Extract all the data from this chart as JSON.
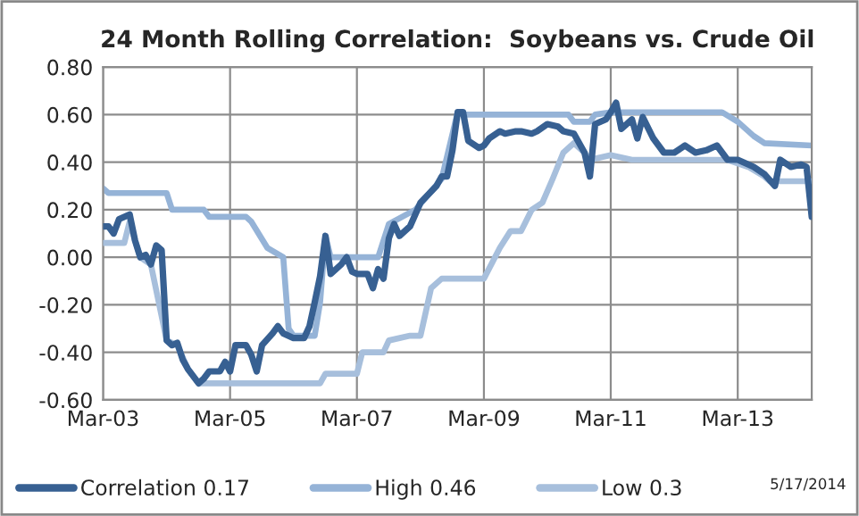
{
  "chart_data": {
    "type": "line",
    "title": "24 Month Rolling Correlation:  Soybeans vs. Crude Oil",
    "xlim": [
      "2003-03",
      "2014-05"
    ],
    "xticks": [
      {
        "value": "2003-03",
        "label": "Mar-03"
      },
      {
        "value": "2005-03",
        "label": "Mar-05"
      },
      {
        "value": "2007-03",
        "label": "Mar-07"
      },
      {
        "value": "2009-03",
        "label": "Mar-09"
      },
      {
        "value": "2011-03",
        "label": "Mar-11"
      },
      {
        "value": "2013-03",
        "label": "Mar-13"
      }
    ],
    "ylim": [
      -0.6,
      0.8
    ],
    "yticks": [
      {
        "value": -0.6,
        "label": "-0.60"
      },
      {
        "value": -0.4,
        "label": "-0.40"
      },
      {
        "value": -0.2,
        "label": "-0.20"
      },
      {
        "value": 0,
        "label": "0.00"
      },
      {
        "value": 0.2,
        "label": "0.20"
      },
      {
        "value": 0.4,
        "label": "0.40"
      },
      {
        "value": 0.6,
        "label": "0.60"
      },
      {
        "value": 0.8,
        "label": "0.80"
      }
    ],
    "grid": true,
    "legend": "bottom",
    "marker": "none",
    "line_style": "solid",
    "annotations": [
      "5/17/2014"
    ],
    "series": [
      {
        "name": "High 0.46",
        "color": "#95b3d7",
        "x": [
          "2003-03",
          "2003-04",
          "2004-03",
          "2004-04",
          "2004-10",
          "2004-11",
          "2005-06",
          "2005-07",
          "2005-10",
          "2006-01",
          "2006-02",
          "2006-03",
          "2006-07",
          "2006-08",
          "2006-09",
          "2006-10",
          "2007-07",
          "2007-09",
          "2008-02",
          "2008-07",
          "2008-10",
          "2008-11",
          "2010-07",
          "2010-08",
          "2010-11",
          "2010-12",
          "2011-03",
          "2012-12",
          "2013-03",
          "2013-06",
          "2013-08",
          "2014-05"
        ],
        "values": [
          0.29,
          0.27,
          0.27,
          0.2,
          0.2,
          0.17,
          0.17,
          0.15,
          0.04,
          0.0,
          -0.3,
          -0.33,
          -0.33,
          -0.19,
          0.09,
          0.0,
          0.0,
          0.14,
          0.2,
          0.33,
          0.61,
          0.6,
          0.6,
          0.57,
          0.57,
          0.6,
          0.61,
          0.61,
          0.57,
          0.51,
          0.48,
          0.47
        ]
      },
      {
        "name": "Low 0.3",
        "color": "#a7bfdc",
        "x": [
          "2003-03",
          "2003-07",
          "2003-08",
          "2003-09",
          "2003-10",
          "2003-12",
          "2004-03",
          "2004-05",
          "2004-07",
          "2004-09",
          "2006-08",
          "2006-09",
          "2007-03",
          "2007-04",
          "2007-08",
          "2007-09",
          "2008-01",
          "2008-03",
          "2008-05",
          "2008-07",
          "2009-03",
          "2009-06",
          "2009-08",
          "2009-10",
          "2009-12",
          "2010-02",
          "2010-04",
          "2010-06",
          "2010-08",
          "2010-10",
          "2010-11",
          "2011-03",
          "2011-07",
          "2013-01",
          "2013-05",
          "2013-08",
          "2013-09",
          "2014-05"
        ],
        "values": [
          0.06,
          0.06,
          0.15,
          0.07,
          0.0,
          -0.03,
          -0.35,
          -0.37,
          -0.47,
          -0.53,
          -0.53,
          -0.49,
          -0.49,
          -0.4,
          -0.4,
          -0.35,
          -0.33,
          -0.33,
          -0.13,
          -0.09,
          -0.09,
          0.04,
          0.11,
          0.11,
          0.2,
          0.23,
          0.33,
          0.44,
          0.48,
          0.44,
          0.41,
          0.43,
          0.41,
          0.41,
          0.38,
          0.34,
          0.32,
          0.32
        ]
      },
      {
        "name": "Correlation 0.17",
        "color": "#376092",
        "x": [
          "2003-03",
          "2003-04",
          "2003-05",
          "2003-06",
          "2003-08",
          "2003-09",
          "2003-10",
          "2003-11",
          "2003-12",
          "2004-01",
          "2004-02",
          "2004-03",
          "2004-04",
          "2004-05",
          "2004-06",
          "2004-07",
          "2004-09",
          "2004-10",
          "2004-11",
          "2005-01",
          "2005-02",
          "2005-03",
          "2005-04",
          "2005-06",
          "2005-07",
          "2005-08",
          "2005-09",
          "2005-11",
          "2005-12",
          "2006-01",
          "2006-03",
          "2006-05",
          "2006-06",
          "2006-07",
          "2006-08",
          "2006-09",
          "2006-10",
          "2006-12",
          "2007-01",
          "2007-02",
          "2007-03",
          "2007-05",
          "2007-06",
          "2007-07",
          "2007-08",
          "2007-09",
          "2007-10",
          "2007-11",
          "2008-01",
          "2008-03",
          "2008-06",
          "2008-07",
          "2008-08",
          "2008-09",
          "2008-10",
          "2008-11",
          "2008-12",
          "2009-02",
          "2009-03",
          "2009-04",
          "2009-06",
          "2009-07",
          "2009-09",
          "2009-10",
          "2009-12",
          "2010-01",
          "2010-03",
          "2010-05",
          "2010-06",
          "2010-08",
          "2010-10",
          "2010-11",
          "2010-12",
          "2011-02",
          "2011-03",
          "2011-04",
          "2011-05",
          "2011-07",
          "2011-08",
          "2011-09",
          "2011-11",
          "2012-01",
          "2012-03",
          "2012-05",
          "2012-07",
          "2012-09",
          "2012-11",
          "2013-01",
          "2013-03",
          "2013-05",
          "2013-06",
          "2013-08",
          "2013-10",
          "2013-11",
          "2014-01",
          "2014-03",
          "2014-04",
          "2014-05"
        ],
        "values": [
          0.13,
          0.13,
          0.1,
          0.16,
          0.18,
          0.07,
          0.0,
          0.01,
          -0.03,
          0.05,
          0.03,
          -0.35,
          -0.37,
          -0.36,
          -0.43,
          -0.47,
          -0.53,
          -0.51,
          -0.48,
          -0.48,
          -0.44,
          -0.48,
          -0.37,
          -0.37,
          -0.41,
          -0.48,
          -0.37,
          -0.32,
          -0.29,
          -0.32,
          -0.34,
          -0.34,
          -0.29,
          -0.19,
          -0.08,
          0.09,
          -0.07,
          -0.03,
          0.0,
          -0.06,
          -0.07,
          -0.07,
          -0.13,
          -0.05,
          -0.09,
          0.08,
          0.14,
          0.09,
          0.13,
          0.23,
          0.3,
          0.34,
          0.34,
          0.45,
          0.61,
          0.61,
          0.49,
          0.46,
          0.47,
          0.5,
          0.53,
          0.52,
          0.53,
          0.53,
          0.52,
          0.53,
          0.56,
          0.55,
          0.53,
          0.52,
          0.44,
          0.34,
          0.56,
          0.58,
          0.61,
          0.65,
          0.54,
          0.58,
          0.5,
          0.59,
          0.5,
          0.44,
          0.44,
          0.47,
          0.44,
          0.45,
          0.47,
          0.41,
          0.41,
          0.39,
          0.38,
          0.35,
          0.3,
          0.41,
          0.38,
          0.39,
          0.38,
          0.17
        ]
      }
    ]
  }
}
